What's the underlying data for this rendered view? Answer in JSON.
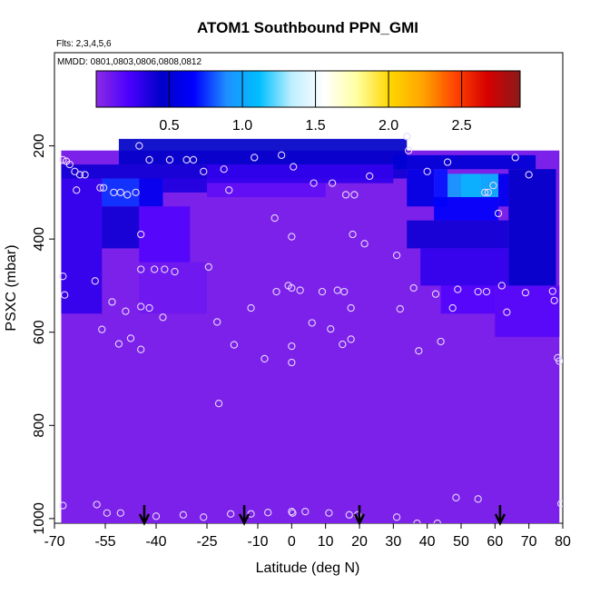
{
  "chart_data": {
    "type": "heatmap",
    "title": "ATOM1 Southbound PPN_GMI",
    "subtitle_flights": "Flts: 2,3,4,5,6",
    "subtitle_dates": "MMDD: 0801,0803,0806,0808,0812",
    "xlabel": "Latitude (deg N)",
    "ylabel": "PSXC (mbar)",
    "x_ticks": [
      "-70",
      "-55",
      "-40",
      "-25",
      "-10",
      "0",
      "10",
      "20",
      "30",
      "40",
      "50",
      "60",
      "70",
      "80"
    ],
    "x_tick_values": [
      -70,
      -55,
      -40,
      -25,
      -10,
      0,
      10,
      20,
      30,
      40,
      50,
      60,
      70,
      80
    ],
    "y_ticks": [
      "200",
      "400",
      "600",
      "800",
      "1000"
    ],
    "y_tick_values": [
      200,
      400,
      600,
      800,
      1000
    ],
    "xlim": [
      -70,
      80
    ],
    "ylim": [
      1010,
      0
    ],
    "colorbar": {
      "range": [
        0,
        2.9
      ],
      "ticks": [
        "0.5",
        "1.0",
        "1.5",
        "2.0",
        "2.5"
      ],
      "tick_values": [
        0.5,
        1.0,
        1.5,
        2.0,
        2.5
      ],
      "colors": [
        "#8a2be2",
        "#4b00ff",
        "#0000c8",
        "#0000ff",
        "#1e90ff",
        "#00bfff",
        "#bfefff",
        "#ffffff",
        "#ffffa0",
        "#ffd700",
        "#ffa500",
        "#ff4500",
        "#d60000",
        "#8b1a1a"
      ]
    },
    "background_value": 0.05,
    "upper_region": {
      "pressure_top": 210,
      "pressure_bottom": 560,
      "cells": [
        {
          "lat": [
            -51,
            34
          ],
          "p": [
            185,
            240
          ],
          "v": 0.45
        },
        {
          "lat": [
            -68,
            34
          ],
          "p": [
            240,
            270
          ],
          "v": 0.4
        },
        {
          "lat": [
            -68,
            -56
          ],
          "p": [
            270,
            560
          ],
          "v": 0.3
        },
        {
          "lat": [
            -56,
            -45
          ],
          "p": [
            270,
            330
          ],
          "v": 0.75
        },
        {
          "lat": [
            -56,
            -45
          ],
          "p": [
            330,
            420
          ],
          "v": 0.4
        },
        {
          "lat": [
            -45,
            -38
          ],
          "p": [
            270,
            330
          ],
          "v": 0.6
        },
        {
          "lat": [
            -45,
            -30
          ],
          "p": [
            330,
            450
          ],
          "v": 0.2
        },
        {
          "lat": [
            -45,
            -25
          ],
          "p": [
            450,
            560
          ],
          "v": 0.1
        },
        {
          "lat": [
            -38,
            -25
          ],
          "p": [
            270,
            300
          ],
          "v": 0.35
        },
        {
          "lat": [
            -25,
            30
          ],
          "p": [
            240,
            280
          ],
          "v": 0.3
        },
        {
          "lat": [
            -25,
            10
          ],
          "p": [
            280,
            310
          ],
          "v": 0.15
        },
        {
          "lat": [
            30,
            72
          ],
          "p": [
            220,
            250
          ],
          "v": 0.5
        },
        {
          "lat": [
            34,
            42
          ],
          "p": [
            250,
            330
          ],
          "v": 0.55
        },
        {
          "lat": [
            42,
            46
          ],
          "p": [
            250,
            330
          ],
          "v": 0.7
        },
        {
          "lat": [
            46,
            50
          ],
          "p": [
            260,
            310
          ],
          "v": 0.95
        },
        {
          "lat": [
            50,
            56
          ],
          "p": [
            260,
            310
          ],
          "v": 1.1
        },
        {
          "lat": [
            56,
            61
          ],
          "p": [
            260,
            310
          ],
          "v": 1.05
        },
        {
          "lat": [
            61,
            64
          ],
          "p": [
            260,
            330
          ],
          "v": 0.6
        },
        {
          "lat": [
            64,
            78
          ],
          "p": [
            250,
            500
          ],
          "v": 0.45
        },
        {
          "lat": [
            42,
            61
          ],
          "p": [
            310,
            360
          ],
          "v": 0.65
        },
        {
          "lat": [
            34,
            64
          ],
          "p": [
            360,
            420
          ],
          "v": 0.4
        },
        {
          "lat": [
            38,
            64
          ],
          "p": [
            420,
            500
          ],
          "v": 0.3
        },
        {
          "lat": [
            44,
            60
          ],
          "p": [
            500,
            560
          ],
          "v": 0.2
        },
        {
          "lat": [
            60,
            79
          ],
          "p": [
            500,
            610
          ],
          "v": 0.18
        }
      ]
    },
    "data_extent": {
      "lat": [
        -68,
        79
      ],
      "p_top": 210,
      "p_bottom": 1010
    },
    "sample_points": [
      [
        -67.5,
        230
      ],
      [
        -66.5,
        233
      ],
      [
        -65.5,
        240
      ],
      [
        -64,
        255
      ],
      [
        -62.5,
        262
      ],
      [
        -61,
        262
      ],
      [
        -56.5,
        290
      ],
      [
        -55.5,
        290
      ],
      [
        -52.5,
        300
      ],
      [
        -48.5,
        305
      ],
      [
        -45,
        200
      ],
      [
        -42,
        230
      ],
      [
        -36,
        230
      ],
      [
        -31,
        230
      ],
      [
        -29,
        230
      ],
      [
        -26,
        255
      ],
      [
        -20,
        250
      ],
      [
        -11,
        225
      ],
      [
        -3,
        220
      ],
      [
        0.5,
        245
      ],
      [
        6.5,
        280
      ],
      [
        12,
        280
      ],
      [
        16,
        305
      ],
      [
        18.5,
        305
      ],
      [
        23,
        265
      ],
      [
        34,
        180
      ],
      [
        34.5,
        210
      ],
      [
        46,
        235
      ],
      [
        57,
        300
      ],
      [
        58,
        300
      ],
      [
        59.5,
        285
      ],
      [
        66,
        225
      ],
      [
        70,
        262
      ],
      [
        40,
        255
      ],
      [
        -63.5,
        295
      ],
      [
        -50.5,
        300
      ],
      [
        -46,
        300
      ],
      [
        -40.5,
        465
      ],
      [
        -37.5,
        465
      ],
      [
        -34.5,
        470
      ],
      [
        -24.5,
        460
      ],
      [
        -18.5,
        295
      ],
      [
        -5,
        355
      ],
      [
        0,
        395
      ],
      [
        18,
        390
      ],
      [
        21.5,
        410
      ],
      [
        31,
        435
      ],
      [
        -67.5,
        480
      ],
      [
        -67,
        520
      ],
      [
        -58,
        490
      ],
      [
        -44.5,
        465
      ],
      [
        -44.5,
        390
      ],
      [
        -53,
        535
      ],
      [
        -49,
        555
      ],
      [
        -44.5,
        545
      ],
      [
        -42,
        548
      ],
      [
        -38,
        568
      ],
      [
        -22,
        578
      ],
      [
        -12,
        548
      ],
      [
        -4.5,
        513
      ],
      [
        -1,
        500
      ],
      [
        0,
        505
      ],
      [
        2.5,
        510
      ],
      [
        9,
        513
      ],
      [
        13.5,
        510
      ],
      [
        15.5,
        513
      ],
      [
        17.5,
        548
      ],
      [
        6,
        580
      ],
      [
        11.5,
        593
      ],
      [
        15,
        626
      ],
      [
        17.5,
        615
      ],
      [
        -56,
        594
      ],
      [
        -51,
        625
      ],
      [
        -47.5,
        613
      ],
      [
        -44.5,
        637
      ],
      [
        -17,
        627
      ],
      [
        -8,
        657
      ],
      [
        0,
        630
      ],
      [
        0,
        665
      ],
      [
        -21.5,
        753
      ],
      [
        32,
        550
      ],
      [
        36,
        505
      ],
      [
        42.5,
        518
      ],
      [
        47.5,
        548
      ],
      [
        49,
        508
      ],
      [
        55,
        513
      ],
      [
        57.5,
        513
      ],
      [
        62,
        500
      ],
      [
        63.5,
        557
      ],
      [
        69,
        515
      ],
      [
        77,
        512
      ],
      [
        77.5,
        532
      ],
      [
        37.5,
        640
      ],
      [
        44,
        620
      ],
      [
        78.5,
        655
      ],
      [
        79,
        662
      ],
      [
        61,
        345
      ],
      [
        -67.5,
        972
      ],
      [
        -57.5,
        970
      ],
      [
        -54.5,
        988
      ],
      [
        -50.5,
        988
      ],
      [
        -40,
        995
      ],
      [
        -32,
        992
      ],
      [
        -26,
        997
      ],
      [
        -18,
        990
      ],
      [
        -12,
        990
      ],
      [
        -7,
        987
      ],
      [
        0,
        985
      ],
      [
        0.3,
        988
      ],
      [
        4,
        985
      ],
      [
        11,
        988
      ],
      [
        17,
        992
      ],
      [
        19.5,
        992
      ],
      [
        31,
        997
      ],
      [
        37,
        1010
      ],
      [
        43,
        1010
      ],
      [
        48.5,
        955
      ],
      [
        55,
        958
      ],
      [
        79.5,
        968
      ]
    ],
    "flight_markers": [
      -43.5,
      -14,
      20,
      61.5
    ]
  }
}
